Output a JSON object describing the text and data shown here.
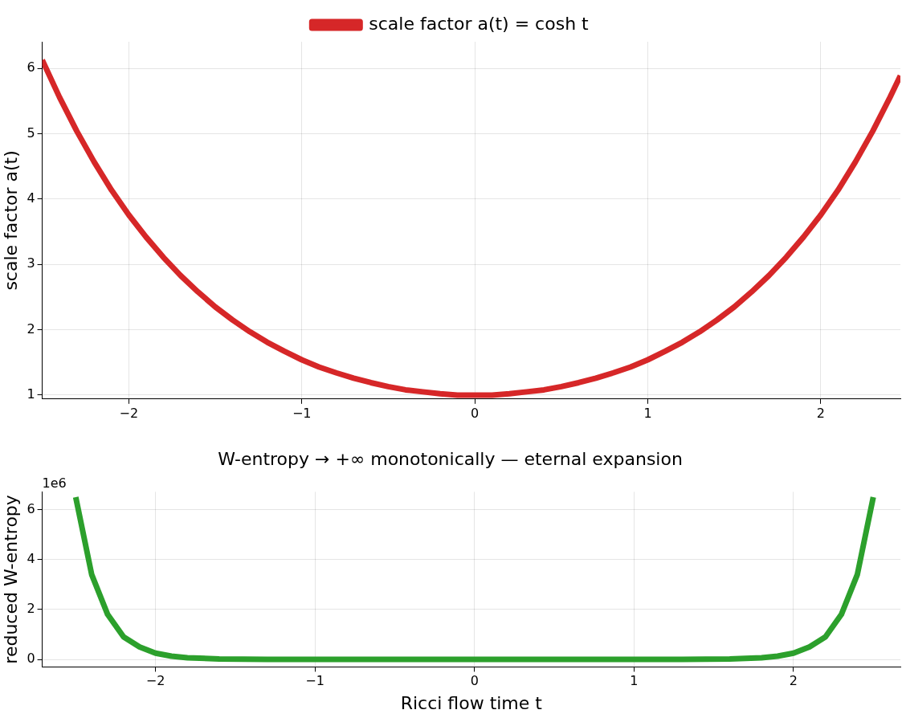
{
  "chart_data": [
    {
      "type": "line",
      "ylabel": "scale factor a(t)",
      "x": [
        -2.5,
        -2.4,
        -2.3,
        -2.2,
        -2.1,
        -2.0,
        -1.9,
        -1.8,
        -1.7,
        -1.6,
        -1.5,
        -1.4,
        -1.3,
        -1.2,
        -1.1,
        -1.0,
        -0.9,
        -0.8,
        -0.7,
        -0.6,
        -0.5,
        -0.4,
        -0.3,
        -0.2,
        -0.1,
        0,
        0.1,
        0.2,
        0.3,
        0.4,
        0.5,
        0.6,
        0.7,
        0.8,
        0.9,
        1.0,
        1.1,
        1.2,
        1.3,
        1.4,
        1.5,
        1.6,
        1.7,
        1.8,
        1.9,
        2.0,
        2.1,
        2.2,
        2.3,
        2.4,
        2.46
      ],
      "series": [
        {
          "name": "scale factor a(t) = cosh t",
          "color": "#d62728",
          "values": [
            6.13,
            5.56,
            5.04,
            4.57,
            4.14,
            3.76,
            3.42,
            3.11,
            2.83,
            2.58,
            2.35,
            2.15,
            1.97,
            1.81,
            1.67,
            1.54,
            1.43,
            1.34,
            1.26,
            1.19,
            1.13,
            1.08,
            1.05,
            1.02,
            1.0,
            1.0,
            1.0,
            1.02,
            1.05,
            1.08,
            1.13,
            1.19,
            1.26,
            1.34,
            1.43,
            1.54,
            1.67,
            1.81,
            1.97,
            2.15,
            2.35,
            2.58,
            2.83,
            3.11,
            3.42,
            3.76,
            4.14,
            4.57,
            5.04,
            5.56,
            5.89
          ]
        }
      ],
      "xlim": [
        -2.5,
        2.46
      ],
      "xticks": [
        -2,
        -1,
        0,
        1,
        2
      ],
      "ylim": [
        0.94,
        6.41
      ],
      "yticks": [
        1,
        2,
        3,
        4,
        5,
        6
      ],
      "grid": true,
      "legend": "top",
      "marker": "none",
      "line_style": "solid"
    },
    {
      "type": "line",
      "title": "W-entropy → +∞ monotonically — eternal expansion",
      "xlabel": "Ricci flow time t",
      "ylabel": "reduced W-entropy",
      "annotations": [
        "1e6"
      ],
      "x": [
        -2.5,
        -2.4,
        -2.3,
        -2.2,
        -2.1,
        -2.0,
        -1.9,
        -1.8,
        -1.6,
        -1.3,
        -1.0,
        0,
        1.0,
        1.3,
        1.6,
        1.8,
        1.9,
        2.0,
        2.1,
        2.2,
        2.3,
        2.4,
        2.5
      ],
      "series": [
        {
          "color": "#2ca02c",
          "values": [
            6.5,
            3.4,
            1.8,
            0.9,
            0.5,
            0.25,
            0.13,
            0.07,
            0.02,
            0,
            0,
            0,
            0,
            0,
            0.02,
            0.07,
            0.13,
            0.25,
            0.5,
            0.9,
            1.8,
            3.4,
            6.5
          ]
        }
      ],
      "xlim": [
        -2.71,
        2.67
      ],
      "xticks": [
        -2,
        -1,
        0,
        1,
        2
      ],
      "ylim": [
        -0.3,
        6.71
      ],
      "yticks": [
        0,
        2,
        4,
        6
      ],
      "grid": true,
      "marker": "none",
      "line_style": "solid"
    }
  ]
}
